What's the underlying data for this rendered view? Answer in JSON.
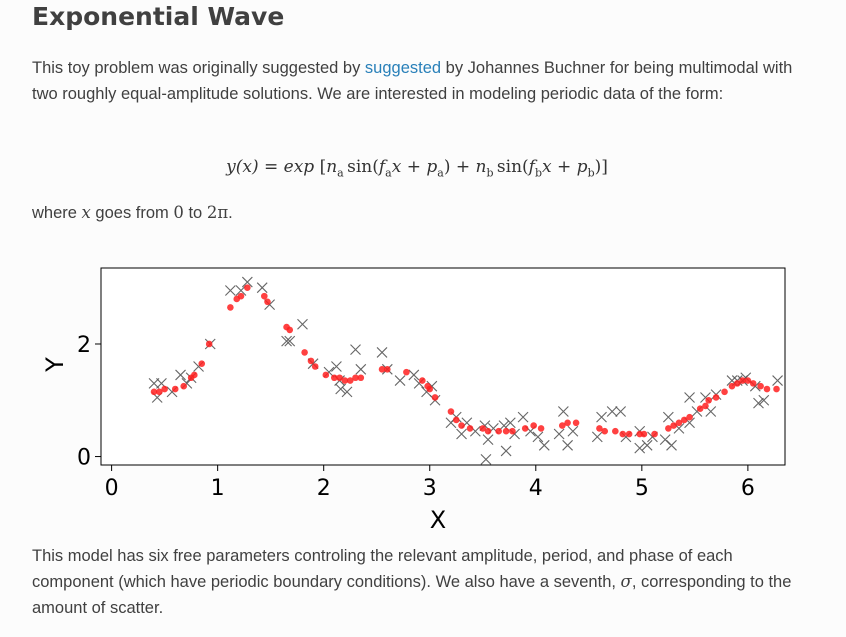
{
  "heading": "Exponential Wave",
  "intro": {
    "text_before_link": "This toy problem was originally suggested by ",
    "link_text": "suggested",
    "text_after_link": " by Johannes Buchner for being multimodal with two roughly equal-amplitude solutions. We are interested in modeling periodic data of the form:"
  },
  "equation": {
    "lhs": "y(x) = exp",
    "na": "n",
    "fa": "f",
    "pa": "p",
    "nb": "n",
    "fb": "f",
    "pb": "p",
    "sub_a": "a",
    "sub_b": "b"
  },
  "domain_text": {
    "prefix": "where ",
    "var": "x",
    "middle": " goes from ",
    "from": "0",
    "to_word": " to ",
    "to": "2π",
    "suffix": "."
  },
  "closing_text": {
    "before_sigma": "This model has six free parameters controling the relevant amplitude, period, and phase of each component (which have periodic boundary conditions). We also have a seventh, ",
    "sigma": "σ",
    "after_sigma": ", corresponding to the amount of scatter."
  },
  "chart_data": {
    "type": "scatter",
    "xlabel": "X",
    "ylabel": "Y",
    "xlim": [
      -0.1,
      6.35
    ],
    "ylim": [
      -0.15,
      3.35
    ],
    "xticks": [
      0,
      1,
      2,
      3,
      4,
      5,
      6
    ],
    "yticks": [
      0,
      2
    ],
    "grid": false,
    "series": [
      {
        "marker": "x",
        "color": "#555555",
        "points": [
          [
            0.4,
            1.3
          ],
          [
            0.43,
            1.05
          ],
          [
            0.47,
            1.3
          ],
          [
            0.57,
            1.15
          ],
          [
            0.65,
            1.45
          ],
          [
            0.71,
            1.3
          ],
          [
            0.75,
            1.4
          ],
          [
            0.82,
            1.6
          ],
          [
            0.93,
            2.0
          ],
          [
            1.12,
            2.95
          ],
          [
            1.22,
            2.95
          ],
          [
            1.28,
            3.1
          ],
          [
            1.42,
            3.0
          ],
          [
            1.49,
            2.7
          ],
          [
            1.65,
            2.05
          ],
          [
            1.68,
            2.05
          ],
          [
            1.8,
            2.35
          ],
          [
            1.9,
            1.65
          ],
          [
            2.05,
            1.5
          ],
          [
            2.12,
            1.6
          ],
          [
            2.15,
            1.35
          ],
          [
            2.16,
            1.2
          ],
          [
            2.22,
            1.15
          ],
          [
            2.3,
            1.9
          ],
          [
            2.35,
            1.55
          ],
          [
            2.55,
            1.85
          ],
          [
            2.6,
            1.55
          ],
          [
            2.72,
            1.35
          ],
          [
            2.85,
            1.45
          ],
          [
            2.9,
            1.3
          ],
          [
            2.97,
            1.15
          ],
          [
            3.02,
            1.25
          ],
          [
            3.05,
            1.0
          ],
          [
            3.2,
            0.6
          ],
          [
            3.25,
            0.7
          ],
          [
            3.3,
            0.4
          ],
          [
            3.35,
            0.6
          ],
          [
            3.43,
            0.45
          ],
          [
            3.52,
            0.55
          ],
          [
            3.53,
            -0.05
          ],
          [
            3.55,
            0.3
          ],
          [
            3.6,
            0.5
          ],
          [
            3.7,
            0.55
          ],
          [
            3.72,
            0.1
          ],
          [
            3.76,
            0.6
          ],
          [
            3.8,
            0.4
          ],
          [
            3.88,
            0.7
          ],
          [
            3.95,
            0.45
          ],
          [
            4.02,
            0.35
          ],
          [
            4.08,
            0.2
          ],
          [
            4.22,
            0.4
          ],
          [
            4.26,
            0.8
          ],
          [
            4.3,
            0.2
          ],
          [
            4.35,
            0.45
          ],
          [
            4.58,
            0.35
          ],
          [
            4.62,
            0.7
          ],
          [
            4.72,
            0.8
          ],
          [
            4.8,
            0.8
          ],
          [
            4.85,
            0.35
          ],
          [
            4.98,
            0.45
          ],
          [
            4.98,
            0.15
          ],
          [
            5.05,
            0.2
          ],
          [
            5.1,
            0.35
          ],
          [
            5.22,
            0.3
          ],
          [
            5.25,
            0.7
          ],
          [
            5.28,
            0.2
          ],
          [
            5.35,
            0.5
          ],
          [
            5.45,
            0.6
          ],
          [
            5.45,
            1.05
          ],
          [
            5.52,
            0.8
          ],
          [
            5.6,
            1.05
          ],
          [
            5.65,
            0.8
          ],
          [
            5.7,
            1.1
          ],
          [
            5.85,
            1.35
          ],
          [
            5.9,
            1.35
          ],
          [
            5.95,
            1.35
          ],
          [
            5.98,
            1.4
          ],
          [
            6.07,
            1.25
          ],
          [
            6.1,
            0.95
          ],
          [
            6.15,
            1.0
          ],
          [
            6.28,
            1.35
          ]
        ]
      },
      {
        "marker": "o",
        "color": "#ff2020",
        "points": [
          [
            0.4,
            1.15
          ],
          [
            0.45,
            1.15
          ],
          [
            0.5,
            1.2
          ],
          [
            0.6,
            1.2
          ],
          [
            0.68,
            1.25
          ],
          [
            0.75,
            1.4
          ],
          [
            0.78,
            1.45
          ],
          [
            0.85,
            1.65
          ],
          [
            0.92,
            2.0
          ],
          [
            1.12,
            2.65
          ],
          [
            1.18,
            2.8
          ],
          [
            1.22,
            2.85
          ],
          [
            1.28,
            3.0
          ],
          [
            1.44,
            2.85
          ],
          [
            1.47,
            2.75
          ],
          [
            1.65,
            2.3
          ],
          [
            1.68,
            2.25
          ],
          [
            1.82,
            1.85
          ],
          [
            1.88,
            1.7
          ],
          [
            1.92,
            1.6
          ],
          [
            2.02,
            1.45
          ],
          [
            2.1,
            1.4
          ],
          [
            2.15,
            1.4
          ],
          [
            2.2,
            1.35
          ],
          [
            2.25,
            1.35
          ],
          [
            2.3,
            1.4
          ],
          [
            2.35,
            1.4
          ],
          [
            2.55,
            1.55
          ],
          [
            2.6,
            1.55
          ],
          [
            2.78,
            1.5
          ],
          [
            2.93,
            1.35
          ],
          [
            2.98,
            1.25
          ],
          [
            3.0,
            1.2
          ],
          [
            3.05,
            1.05
          ],
          [
            3.2,
            0.8
          ],
          [
            3.25,
            0.65
          ],
          [
            3.3,
            0.55
          ],
          [
            3.38,
            0.5
          ],
          [
            3.5,
            0.5
          ],
          [
            3.55,
            0.45
          ],
          [
            3.65,
            0.45
          ],
          [
            3.72,
            0.45
          ],
          [
            3.78,
            0.45
          ],
          [
            3.9,
            0.5
          ],
          [
            3.98,
            0.55
          ],
          [
            4.05,
            0.5
          ],
          [
            4.25,
            0.55
          ],
          [
            4.3,
            0.6
          ],
          [
            4.38,
            0.6
          ],
          [
            4.6,
            0.5
          ],
          [
            4.65,
            0.45
          ],
          [
            4.75,
            0.45
          ],
          [
            4.82,
            0.4
          ],
          [
            4.88,
            0.4
          ],
          [
            4.98,
            0.4
          ],
          [
            5.02,
            0.4
          ],
          [
            5.12,
            0.4
          ],
          [
            5.25,
            0.5
          ],
          [
            5.3,
            0.55
          ],
          [
            5.35,
            0.6
          ],
          [
            5.4,
            0.65
          ],
          [
            5.45,
            0.7
          ],
          [
            5.55,
            0.85
          ],
          [
            5.6,
            0.9
          ],
          [
            5.63,
            1.0
          ],
          [
            5.7,
            1.05
          ],
          [
            5.78,
            1.15
          ],
          [
            5.85,
            1.25
          ],
          [
            5.9,
            1.3
          ],
          [
            5.95,
            1.35
          ],
          [
            6.0,
            1.35
          ],
          [
            6.05,
            1.3
          ],
          [
            6.12,
            1.25
          ],
          [
            6.18,
            1.2
          ],
          [
            6.27,
            1.2
          ]
        ]
      }
    ]
  }
}
